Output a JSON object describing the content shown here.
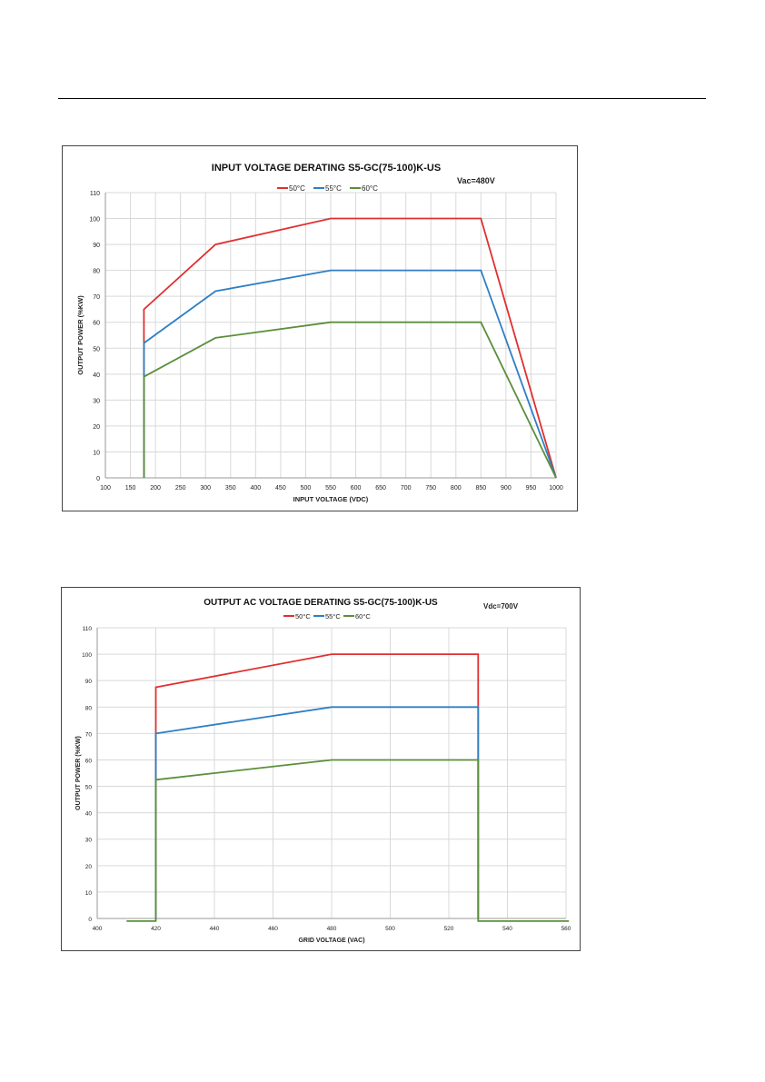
{
  "chart_data": [
    {
      "type": "line",
      "title": "INPUT VOLTAGE DERATING S5-GC(75-100)K-US",
      "annotation": "Vac=480V",
      "xlabel": "INPUT VOLTAGE (VDC)",
      "ylabel": "OUTPUT POWER (%KW)",
      "xlim": [
        100,
        1000
      ],
      "ylim": [
        0,
        110
      ],
      "xticks": [
        100,
        150,
        200,
        250,
        300,
        350,
        400,
        450,
        500,
        550,
        600,
        650,
        700,
        750,
        800,
        850,
        900,
        950,
        1000
      ],
      "yticks": [
        0,
        10,
        20,
        30,
        40,
        50,
        60,
        70,
        80,
        90,
        100,
        110
      ],
      "grid": true,
      "legend_position": "top-center",
      "series": [
        {
          "name": "50°C",
          "color": "#e03030",
          "points": [
            [
              177,
              0
            ],
            [
              177,
              65
            ],
            [
              320,
              90
            ],
            [
              550,
              100
            ],
            [
              850,
              100
            ],
            [
              1000,
              0
            ]
          ]
        },
        {
          "name": "55°C",
          "color": "#2e7fc4",
          "points": [
            [
              177,
              0
            ],
            [
              177,
              52
            ],
            [
              320,
              72
            ],
            [
              550,
              80
            ],
            [
              850,
              80
            ],
            [
              1000,
              0
            ]
          ]
        },
        {
          "name": "60°C",
          "color": "#5a8f3a",
          "points": [
            [
              177,
              0
            ],
            [
              177,
              39
            ],
            [
              320,
              54
            ],
            [
              550,
              60
            ],
            [
              850,
              60
            ],
            [
              1000,
              0
            ]
          ]
        }
      ]
    },
    {
      "type": "line",
      "title": "OUTPUT AC VOLTAGE DERATING S5-GC(75-100)K-US",
      "annotation": "Vdc=700V",
      "xlabel": "GRID VOLTAGE (VAC)",
      "ylabel": "OUTPUT POWER (%KW)",
      "xlim": [
        400,
        560
      ],
      "ylim": [
        0,
        110
      ],
      "xticks": [
        400,
        420,
        440,
        460,
        480,
        500,
        520,
        540,
        560
      ],
      "yticks": [
        0,
        10,
        20,
        30,
        40,
        50,
        60,
        70,
        80,
        90,
        100,
        110
      ],
      "grid": true,
      "legend_position": "top-center",
      "series": [
        {
          "name": "50°C",
          "color": "#e03030",
          "points": [
            [
              420,
              0
            ],
            [
              420,
              87.5
            ],
            [
              480,
              100
            ],
            [
              530,
              100
            ],
            [
              530,
              0
            ]
          ]
        },
        {
          "name": "55°C",
          "color": "#2e7fc4",
          "points": [
            [
              420,
              0
            ],
            [
              420,
              70
            ],
            [
              480,
              80
            ],
            [
              530,
              80
            ],
            [
              530,
              0
            ]
          ]
        },
        {
          "name": "60°C",
          "color": "#5a8f3a",
          "points": [
            [
              410,
              -1
            ],
            [
              420,
              -1
            ],
            [
              420,
              52.5
            ],
            [
              480,
              60
            ],
            [
              530,
              60
            ],
            [
              530,
              -1
            ],
            [
              561,
              -1
            ]
          ]
        }
      ]
    }
  ]
}
